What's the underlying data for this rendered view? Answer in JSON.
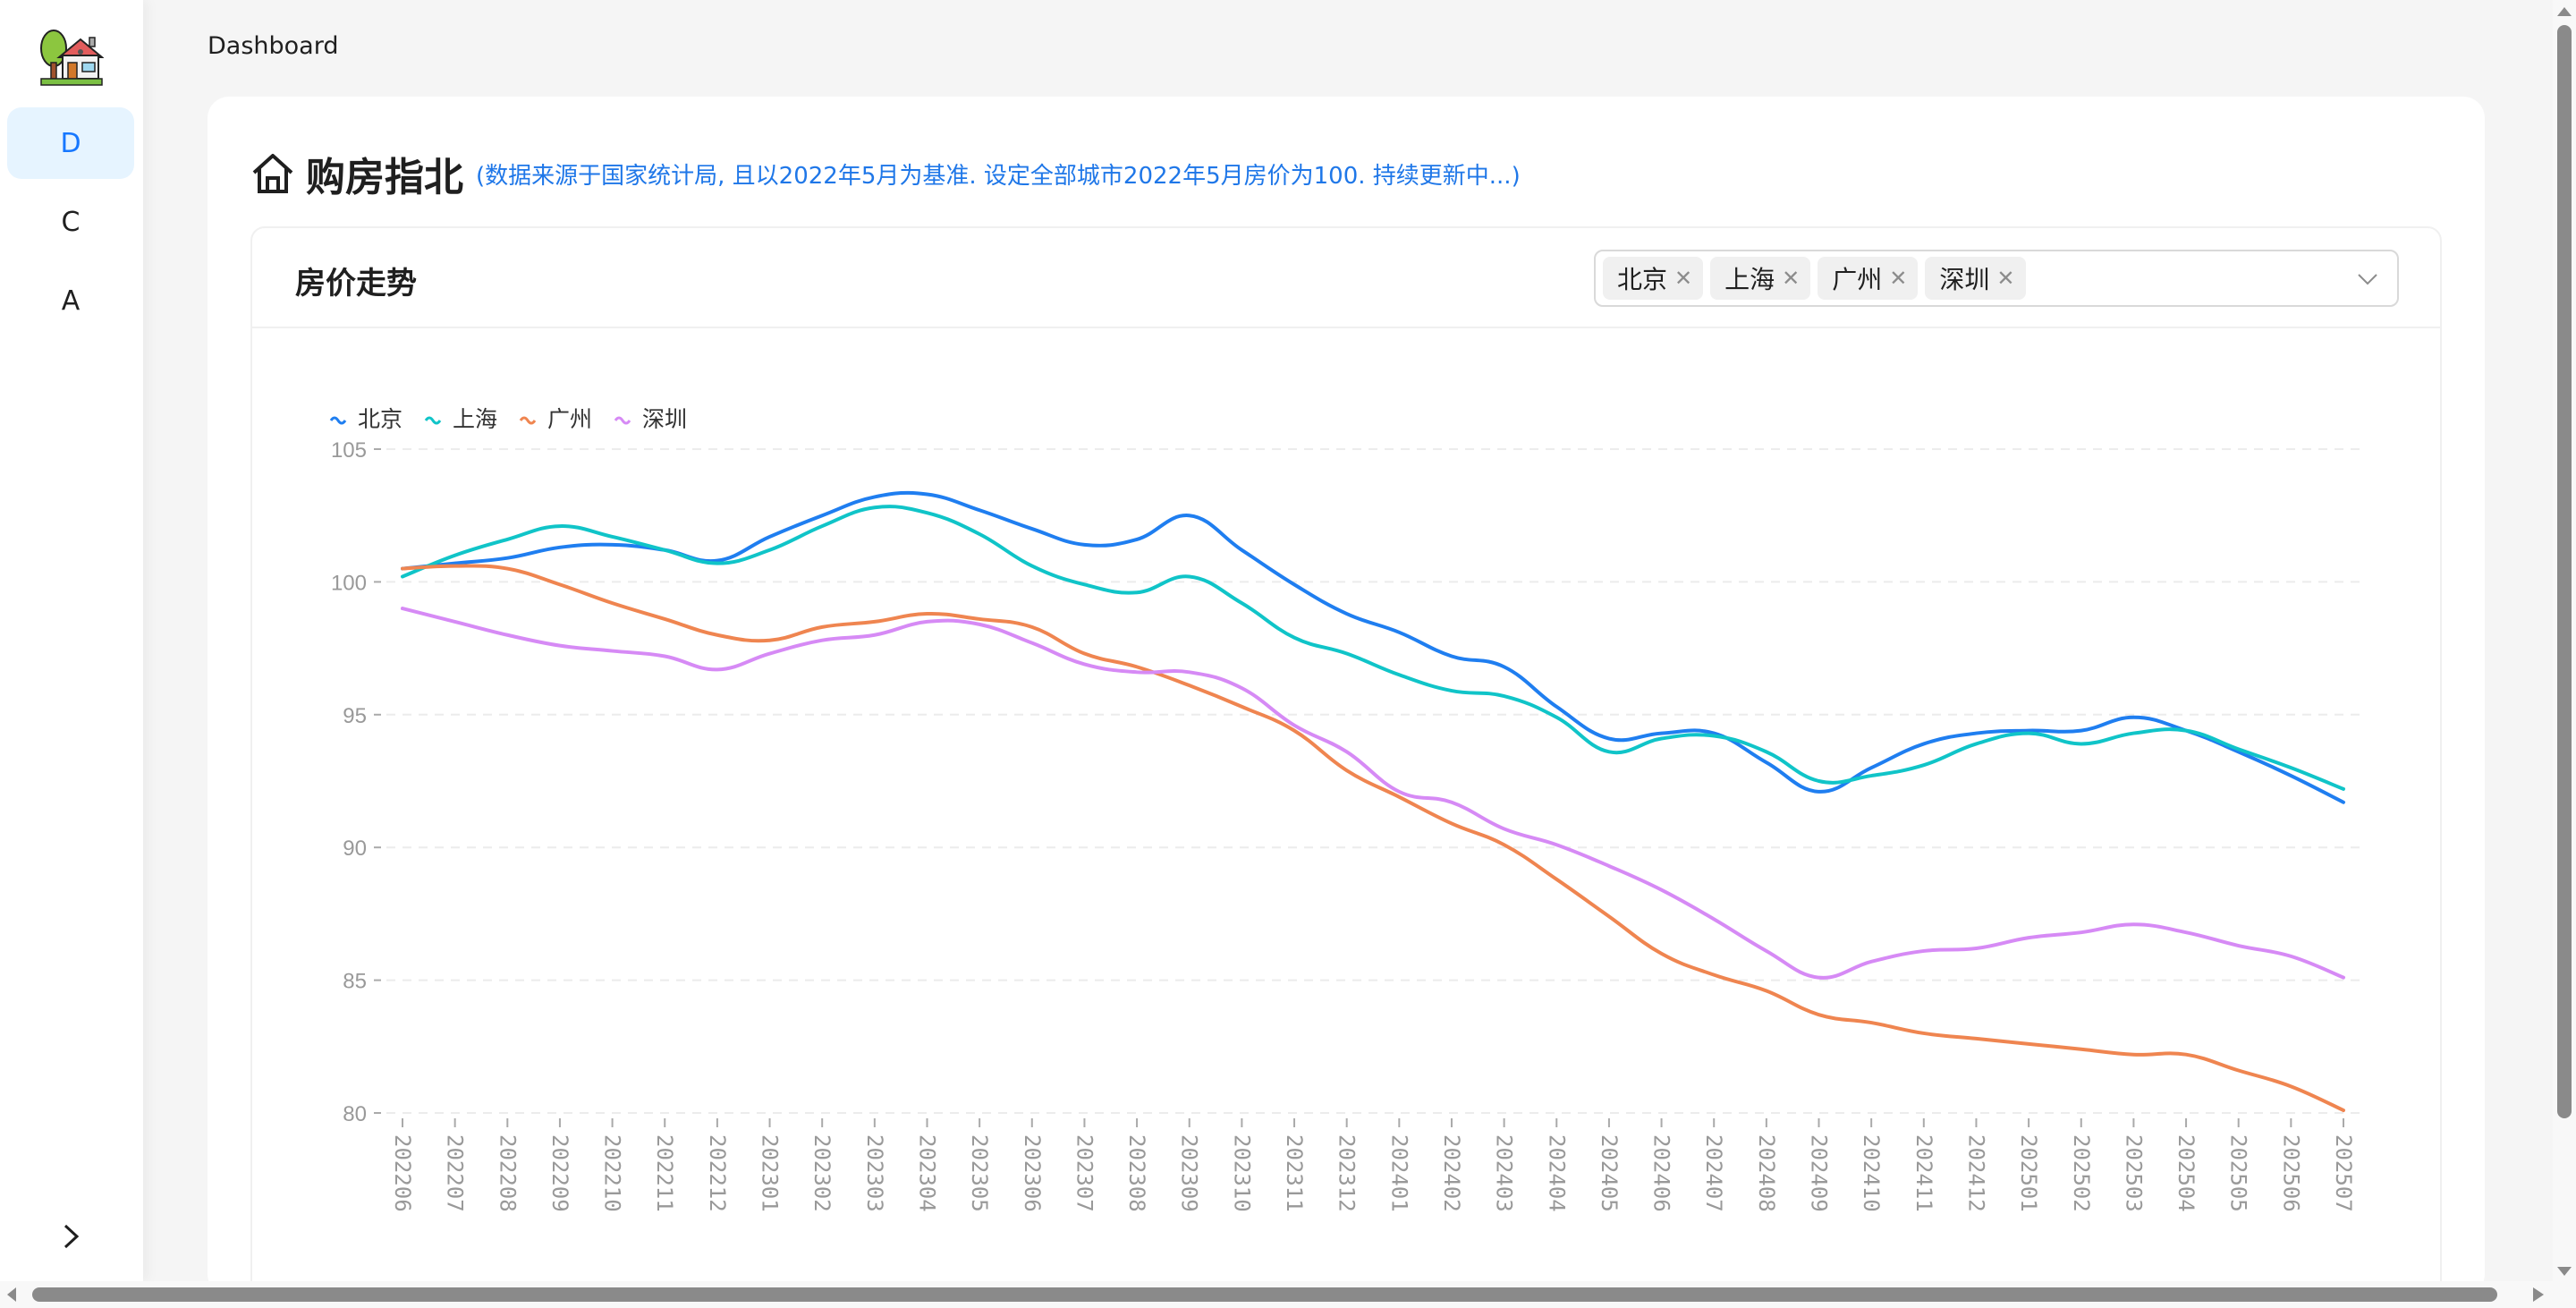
{
  "sidebar": {
    "logo": "house-with-tree-logo",
    "items": [
      {
        "label": "D",
        "active": true
      },
      {
        "label": "C",
        "active": false
      },
      {
        "label": "A",
        "active": false
      }
    ],
    "collapse_icon": "chevron-right-icon"
  },
  "breadcrumb": "Dashboard",
  "page": {
    "icon": "home-icon",
    "title": "购房指北",
    "subtitle": "(数据来源于国家统计局, 且以2022年5月为基准. 设定全部城市2022年5月房价为100. 持续更新中...)"
  },
  "chart_card": {
    "title": "房价走势",
    "selected_cities": [
      "北京",
      "上海",
      "广州",
      "深圳"
    ],
    "remove_icon": "close-icon",
    "dropdown_icon": "chevron-down-icon"
  },
  "colors": {
    "accent": "#1677ff",
    "subtitle": "#1f77e8",
    "北京": "#1f7ef0",
    "上海": "#10c4c8",
    "广州": "#ef8550",
    "深圳": "#d68af5"
  },
  "chart_data": {
    "type": "line",
    "title": "房价走势",
    "xlabel": "",
    "ylabel": "",
    "ylim": [
      80,
      105
    ],
    "yticks": [
      80,
      85,
      90,
      95,
      100,
      105
    ],
    "grid": true,
    "legend_position": "top-left",
    "smooth": true,
    "categories": [
      "202206",
      "202207",
      "202208",
      "202209",
      "202210",
      "202211",
      "202212",
      "202301",
      "202302",
      "202303",
      "202304",
      "202305",
      "202306",
      "202307",
      "202308",
      "202309",
      "202310",
      "202311",
      "202312",
      "202401",
      "202402",
      "202403",
      "202404",
      "202405",
      "202406",
      "202407",
      "202408",
      "202409",
      "202410",
      "202411",
      "202412",
      "202501",
      "202502",
      "202503",
      "202504",
      "202505",
      "202506",
      "202507"
    ],
    "series": [
      {
        "name": "北京",
        "color": "#1f7ef0",
        "values": [
          100.5,
          100.7,
          100.9,
          101.3,
          101.4,
          101.2,
          100.8,
          101.7,
          102.5,
          103.2,
          103.3,
          102.7,
          102.0,
          101.4,
          101.6,
          102.5,
          101.2,
          99.9,
          98.8,
          98.1,
          97.2,
          96.8,
          95.3,
          94.1,
          94.3,
          94.3,
          93.2,
          92.1,
          93.0,
          93.9,
          94.3,
          94.4,
          94.4,
          94.9,
          94.4,
          93.6,
          92.7,
          91.7
        ]
      },
      {
        "name": "上海",
        "color": "#10c4c8",
        "values": [
          100.2,
          101.0,
          101.6,
          102.1,
          101.7,
          101.2,
          100.7,
          101.2,
          102.1,
          102.8,
          102.6,
          101.8,
          100.6,
          99.9,
          99.6,
          100.2,
          99.2,
          97.9,
          97.3,
          96.5,
          95.9,
          95.7,
          94.9,
          93.6,
          94.1,
          94.2,
          93.6,
          92.5,
          92.7,
          93.1,
          93.9,
          94.3,
          93.9,
          94.3,
          94.4,
          93.7,
          93.0,
          92.2
        ]
      },
      {
        "name": "广州",
        "color": "#ef8550",
        "values": [
          100.5,
          100.6,
          100.5,
          99.9,
          99.2,
          98.6,
          98.0,
          97.8,
          98.3,
          98.5,
          98.8,
          98.6,
          98.3,
          97.3,
          96.8,
          96.1,
          95.3,
          94.4,
          92.9,
          91.9,
          90.9,
          90.1,
          88.8,
          87.4,
          86.0,
          85.2,
          84.6,
          83.7,
          83.4,
          83.0,
          82.8,
          82.6,
          82.4,
          82.2,
          82.2,
          81.6,
          81.0,
          80.1
        ]
      },
      {
        "name": "深圳",
        "color": "#d68af5",
        "values": [
          99.0,
          98.5,
          98.0,
          97.6,
          97.4,
          97.2,
          96.7,
          97.3,
          97.8,
          98.0,
          98.5,
          98.4,
          97.7,
          96.9,
          96.6,
          96.6,
          96.0,
          94.6,
          93.6,
          92.1,
          91.7,
          90.7,
          90.1,
          89.3,
          88.4,
          87.3,
          86.1,
          85.1,
          85.7,
          86.1,
          86.2,
          86.6,
          86.8,
          87.1,
          86.8,
          86.3,
          85.9,
          85.1
        ]
      }
    ]
  }
}
